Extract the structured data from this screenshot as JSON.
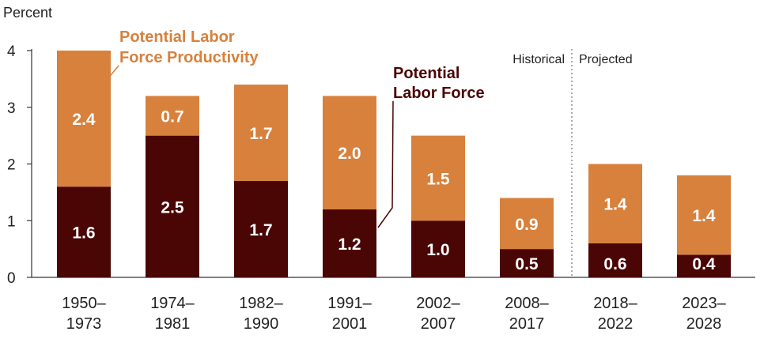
{
  "chart_data": {
    "type": "bar",
    "stacked": true,
    "ylabel": "Percent",
    "ylim": [
      0,
      4
    ],
    "yticks": [
      "0",
      "1",
      "2",
      "3",
      "4"
    ],
    "categories": [
      [
        "1950–",
        "1973"
      ],
      [
        "1974–",
        "1981"
      ],
      [
        "1982–",
        "1990"
      ],
      [
        "1991–",
        "2001"
      ],
      [
        "2002–",
        "2007"
      ],
      [
        "2008–",
        "2017"
      ],
      [
        "2018–",
        "2022"
      ],
      [
        "2023–",
        "2028"
      ]
    ],
    "series": [
      {
        "name": "Potential Labor Force",
        "color": "#4a0505",
        "values": [
          1.6,
          2.5,
          1.7,
          1.2,
          1.0,
          0.5,
          0.6,
          0.4
        ],
        "labels": [
          "1.6",
          "2.5",
          "1.7",
          "1.2",
          "1.0",
          "0.5",
          "0.6",
          "0.4"
        ]
      },
      {
        "name": "Potential Labor Force Productivity",
        "color": "#d7813d",
        "values": [
          2.4,
          0.7,
          1.7,
          2.0,
          1.5,
          0.9,
          1.4,
          1.4
        ],
        "labels": [
          "2.4",
          "0.7",
          "1.7",
          "2.0",
          "1.5",
          "0.9",
          "1.4",
          "1.4"
        ]
      }
    ],
    "annotations": {
      "productivity": [
        "Potential Labor",
        "Force Productivity"
      ],
      "labor_force": [
        "Potential",
        "Labor Force"
      ],
      "historical": "Historical",
      "projected": "Projected"
    },
    "grid": false
  }
}
